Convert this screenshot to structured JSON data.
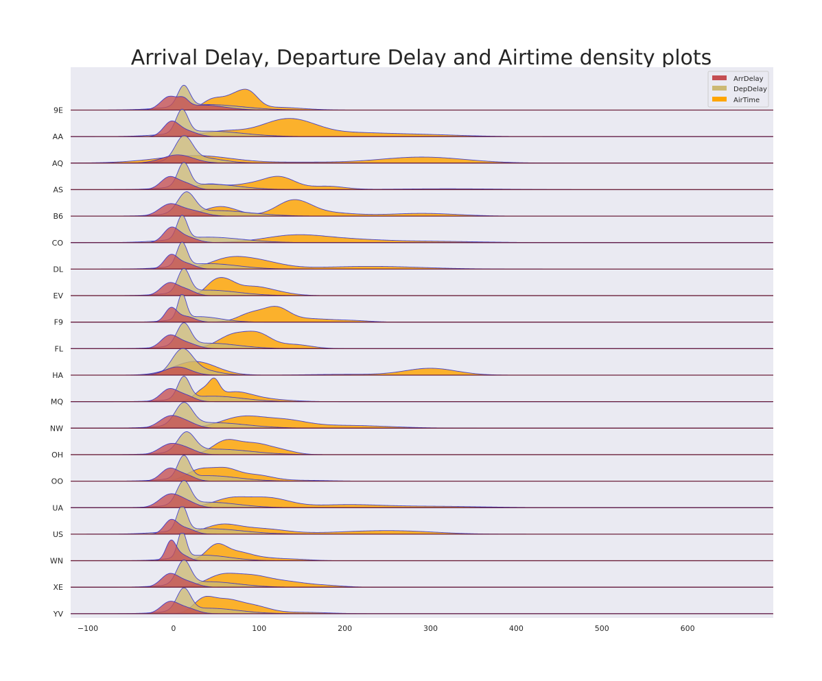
{
  "chart_data": {
    "type": "area",
    "subtype": "ridgeline-density",
    "title": "Arrival Delay, Departure Delay and Airtime density plots",
    "xlabel": "",
    "ylabel": "",
    "xlim": [
      -120,
      700
    ],
    "xticks": [
      -100,
      0,
      100,
      200,
      300,
      400,
      500,
      600
    ],
    "grid": false,
    "legend_position": "top-right",
    "colors": {
      "background": "#eaeaf2",
      "ArrDelay": "#c44e52",
      "DepDelay": "#ccb974",
      "AirTime": "#ffa500",
      "outline": "#2a2acc",
      "baseline": "#6b1f3a"
    },
    "series": [
      {
        "name": "ArrDelay"
      },
      {
        "name": "DepDelay"
      },
      {
        "name": "AirTime"
      }
    ],
    "categories": [
      "9E",
      "AA",
      "AQ",
      "AS",
      "B6",
      "CO",
      "DL",
      "EV",
      "F9",
      "FL",
      "HA",
      "MQ",
      "NW",
      "OH",
      "OO",
      "UA",
      "US",
      "WN",
      "XE",
      "YV"
    ],
    "ridges": [
      {
        "carrier": "9E",
        "ArrDelay": [
          [
            -5,
            10,
            0.45
          ],
          [
            12,
            6,
            0.25
          ],
          [
            35,
            25,
            0.18
          ]
        ],
        "DepDelay": [
          [
            12,
            7,
            0.75
          ],
          [
            40,
            40,
            0.2
          ]
        ],
        "AirTime": [
          [
            45,
            12,
            0.35
          ],
          [
            75,
            15,
            0.55
          ],
          [
            90,
            10,
            0.3
          ],
          [
            120,
            30,
            0.1
          ]
        ]
      },
      {
        "carrier": "AA",
        "ArrDelay": [
          [
            -3,
            9,
            0.5
          ],
          [
            15,
            12,
            0.2
          ]
        ],
        "DepDelay": [
          [
            10,
            7,
            0.85
          ],
          [
            40,
            40,
            0.2
          ]
        ],
        "AirTime": [
          [
            60,
            25,
            0.2
          ],
          [
            120,
            25,
            0.4
          ],
          [
            150,
            25,
            0.35
          ],
          [
            200,
            40,
            0.12
          ],
          [
            280,
            50,
            0.08
          ]
        ]
      },
      {
        "carrier": "AQ",
        "ArrDelay": [
          [
            5,
            18,
            0.3
          ]
        ],
        "DepDelay": [
          [
            12,
            10,
            0.85
          ],
          [
            30,
            25,
            0.2
          ]
        ],
        "AirTime": [
          [
            30,
            40,
            0.25
          ],
          [
            -20,
            40,
            0.05
          ],
          [
            290,
            50,
            0.22
          ],
          [
            150,
            40,
            0.03
          ]
        ]
      },
      {
        "carrier": "AS",
        "ArrDelay": [
          [
            -5,
            10,
            0.45
          ],
          [
            15,
            10,
            0.2
          ]
        ],
        "DepDelay": [
          [
            12,
            7,
            0.85
          ],
          [
            40,
            35,
            0.2
          ]
        ],
        "AirTime": [
          [
            40,
            15,
            0.18
          ],
          [
            90,
            25,
            0.2
          ],
          [
            125,
            18,
            0.4
          ],
          [
            180,
            20,
            0.12
          ],
          [
            320,
            60,
            0.03
          ]
        ]
      },
      {
        "carrier": "B6",
        "ArrDelay": [
          [
            -5,
            12,
            0.4
          ],
          [
            20,
            15,
            0.2
          ]
        ],
        "DepDelay": [
          [
            15,
            10,
            0.75
          ],
          [
            50,
            40,
            0.2
          ]
        ],
        "AirTime": [
          [
            55,
            20,
            0.35
          ],
          [
            140,
            20,
            0.55
          ],
          [
            180,
            30,
            0.12
          ],
          [
            290,
            40,
            0.1
          ]
        ]
      },
      {
        "carrier": "CO",
        "ArrDelay": [
          [
            -3,
            9,
            0.5
          ],
          [
            15,
            12,
            0.2
          ]
        ],
        "DepDelay": [
          [
            10,
            6,
            0.85
          ],
          [
            40,
            40,
            0.2
          ]
        ],
        "AirTime": [
          [
            140,
            35,
            0.25
          ],
          [
            200,
            40,
            0.1
          ],
          [
            290,
            60,
            0.05
          ]
        ]
      },
      {
        "carrier": "DL",
        "ArrDelay": [
          [
            -3,
            8,
            0.5
          ],
          [
            15,
            10,
            0.2
          ]
        ],
        "DepDelay": [
          [
            10,
            6,
            0.85
          ],
          [
            40,
            35,
            0.2
          ]
        ],
        "AirTime": [
          [
            60,
            20,
            0.2
          ],
          [
            90,
            30,
            0.35
          ],
          [
            230,
            60,
            0.1
          ]
        ]
      },
      {
        "carrier": "EV",
        "ArrDelay": [
          [
            -5,
            10,
            0.45
          ],
          [
            15,
            10,
            0.2
          ]
        ],
        "DepDelay": [
          [
            12,
            7,
            0.85
          ],
          [
            40,
            35,
            0.2
          ]
        ],
        "AirTime": [
          [
            45,
            10,
            0.3
          ],
          [
            60,
            12,
            0.45
          ],
          [
            90,
            20,
            0.3
          ],
          [
            120,
            20,
            0.1
          ]
        ]
      },
      {
        "carrier": "F9",
        "ArrDelay": [
          [
            -3,
            7,
            0.5
          ],
          [
            15,
            10,
            0.2
          ]
        ],
        "DepDelay": [
          [
            10,
            5,
            0.9
          ],
          [
            30,
            25,
            0.2
          ]
        ],
        "AirTime": [
          [
            90,
            15,
            0.3
          ],
          [
            120,
            15,
            0.5
          ],
          [
            160,
            25,
            0.12
          ],
          [
            210,
            20,
            0.05
          ]
        ]
      },
      {
        "carrier": "FL",
        "ArrDelay": [
          [
            -5,
            10,
            0.45
          ],
          [
            15,
            12,
            0.2
          ]
        ],
        "DepDelay": [
          [
            12,
            8,
            0.8
          ],
          [
            40,
            35,
            0.2
          ]
        ],
        "AirTime": [
          [
            70,
            18,
            0.5
          ],
          [
            100,
            15,
            0.45
          ],
          [
            140,
            20,
            0.15
          ]
        ]
      },
      {
        "carrier": "HA",
        "ArrDelay": [
          [
            5,
            15,
            0.3
          ]
        ],
        "DepDelay": [
          [
            10,
            12,
            0.85
          ],
          [
            30,
            20,
            0.2
          ]
        ],
        "AirTime": [
          [
            25,
            25,
            0.5
          ],
          [
            300,
            30,
            0.25
          ],
          [
            200,
            40,
            0.03
          ]
        ]
      },
      {
        "carrier": "MQ",
        "ArrDelay": [
          [
            -5,
            10,
            0.45
          ],
          [
            15,
            10,
            0.2
          ]
        ],
        "DepDelay": [
          [
            12,
            7,
            0.8
          ],
          [
            45,
            35,
            0.2
          ]
        ],
        "AirTime": [
          [
            35,
            10,
            0.4
          ],
          [
            48,
            6,
            0.5
          ],
          [
            70,
            20,
            0.3
          ],
          [
            100,
            30,
            0.1
          ]
        ]
      },
      {
        "carrier": "NW",
        "ArrDelay": [
          [
            -5,
            12,
            0.4
          ],
          [
            15,
            12,
            0.2
          ]
        ],
        "DepDelay": [
          [
            12,
            10,
            0.8
          ],
          [
            45,
            40,
            0.2
          ]
        ],
        "AirTime": [
          [
            80,
            25,
            0.4
          ],
          [
            130,
            25,
            0.25
          ],
          [
            200,
            50,
            0.1
          ]
        ]
      },
      {
        "carrier": "OH",
        "ArrDelay": [
          [
            -5,
            12,
            0.35
          ],
          [
            15,
            12,
            0.2
          ]
        ],
        "DepDelay": [
          [
            15,
            10,
            0.7
          ],
          [
            50,
            40,
            0.2
          ]
        ],
        "AirTime": [
          [
            60,
            15,
            0.45
          ],
          [
            95,
            20,
            0.4
          ],
          [
            130,
            15,
            0.1
          ]
        ]
      },
      {
        "carrier": "OO",
        "ArrDelay": [
          [
            -5,
            10,
            0.45
          ],
          [
            15,
            10,
            0.2
          ]
        ],
        "DepDelay": [
          [
            12,
            7,
            0.8
          ],
          [
            40,
            35,
            0.2
          ]
        ],
        "AirTime": [
          [
            30,
            15,
            0.4
          ],
          [
            60,
            15,
            0.4
          ],
          [
            95,
            20,
            0.22
          ],
          [
            150,
            30,
            0.03
          ]
        ]
      },
      {
        "carrier": "UA",
        "ArrDelay": [
          [
            -5,
            12,
            0.45
          ],
          [
            15,
            12,
            0.2
          ]
        ],
        "DepDelay": [
          [
            12,
            8,
            0.85
          ],
          [
            40,
            35,
            0.2
          ]
        ],
        "AirTime": [
          [
            65,
            20,
            0.3
          ],
          [
            110,
            25,
            0.35
          ],
          [
            200,
            40,
            0.1
          ],
          [
            300,
            60,
            0.05
          ]
        ]
      },
      {
        "carrier": "US",
        "ArrDelay": [
          [
            -3,
            8,
            0.5
          ],
          [
            15,
            10,
            0.2
          ]
        ],
        "DepDelay": [
          [
            10,
            6,
            0.9
          ],
          [
            40,
            40,
            0.2
          ]
        ],
        "AirTime": [
          [
            55,
            20,
            0.3
          ],
          [
            100,
            30,
            0.2
          ],
          [
            230,
            50,
            0.1
          ],
          [
            280,
            40,
            0.05
          ]
        ]
      },
      {
        "carrier": "WN",
        "ArrDelay": [
          [
            -3,
            6,
            0.7
          ],
          [
            10,
            8,
            0.2
          ]
        ],
        "DepDelay": [
          [
            10,
            5,
            0.95
          ],
          [
            35,
            30,
            0.2
          ]
        ],
        "AirTime": [
          [
            50,
            12,
            0.55
          ],
          [
            75,
            15,
            0.25
          ],
          [
            100,
            20,
            0.1
          ],
          [
            140,
            20,
            0.05
          ]
        ]
      },
      {
        "carrier": "XE",
        "ArrDelay": [
          [
            -5,
            10,
            0.45
          ],
          [
            15,
            12,
            0.2
          ]
        ],
        "DepDelay": [
          [
            12,
            8,
            0.85
          ],
          [
            40,
            35,
            0.2
          ]
        ],
        "AirTime": [
          [
            55,
            18,
            0.4
          ],
          [
            90,
            20,
            0.35
          ],
          [
            130,
            25,
            0.2
          ],
          [
            180,
            20,
            0.05
          ]
        ]
      },
      {
        "carrier": "YV",
        "ArrDelay": [
          [
            -5,
            10,
            0.4
          ],
          [
            15,
            12,
            0.2
          ]
        ],
        "DepDelay": [
          [
            12,
            8,
            0.8
          ],
          [
            40,
            35,
            0.2
          ]
        ],
        "AirTime": [
          [
            35,
            12,
            0.5
          ],
          [
            60,
            15,
            0.4
          ],
          [
            90,
            20,
            0.3
          ],
          [
            150,
            30,
            0.05
          ]
        ]
      }
    ]
  }
}
